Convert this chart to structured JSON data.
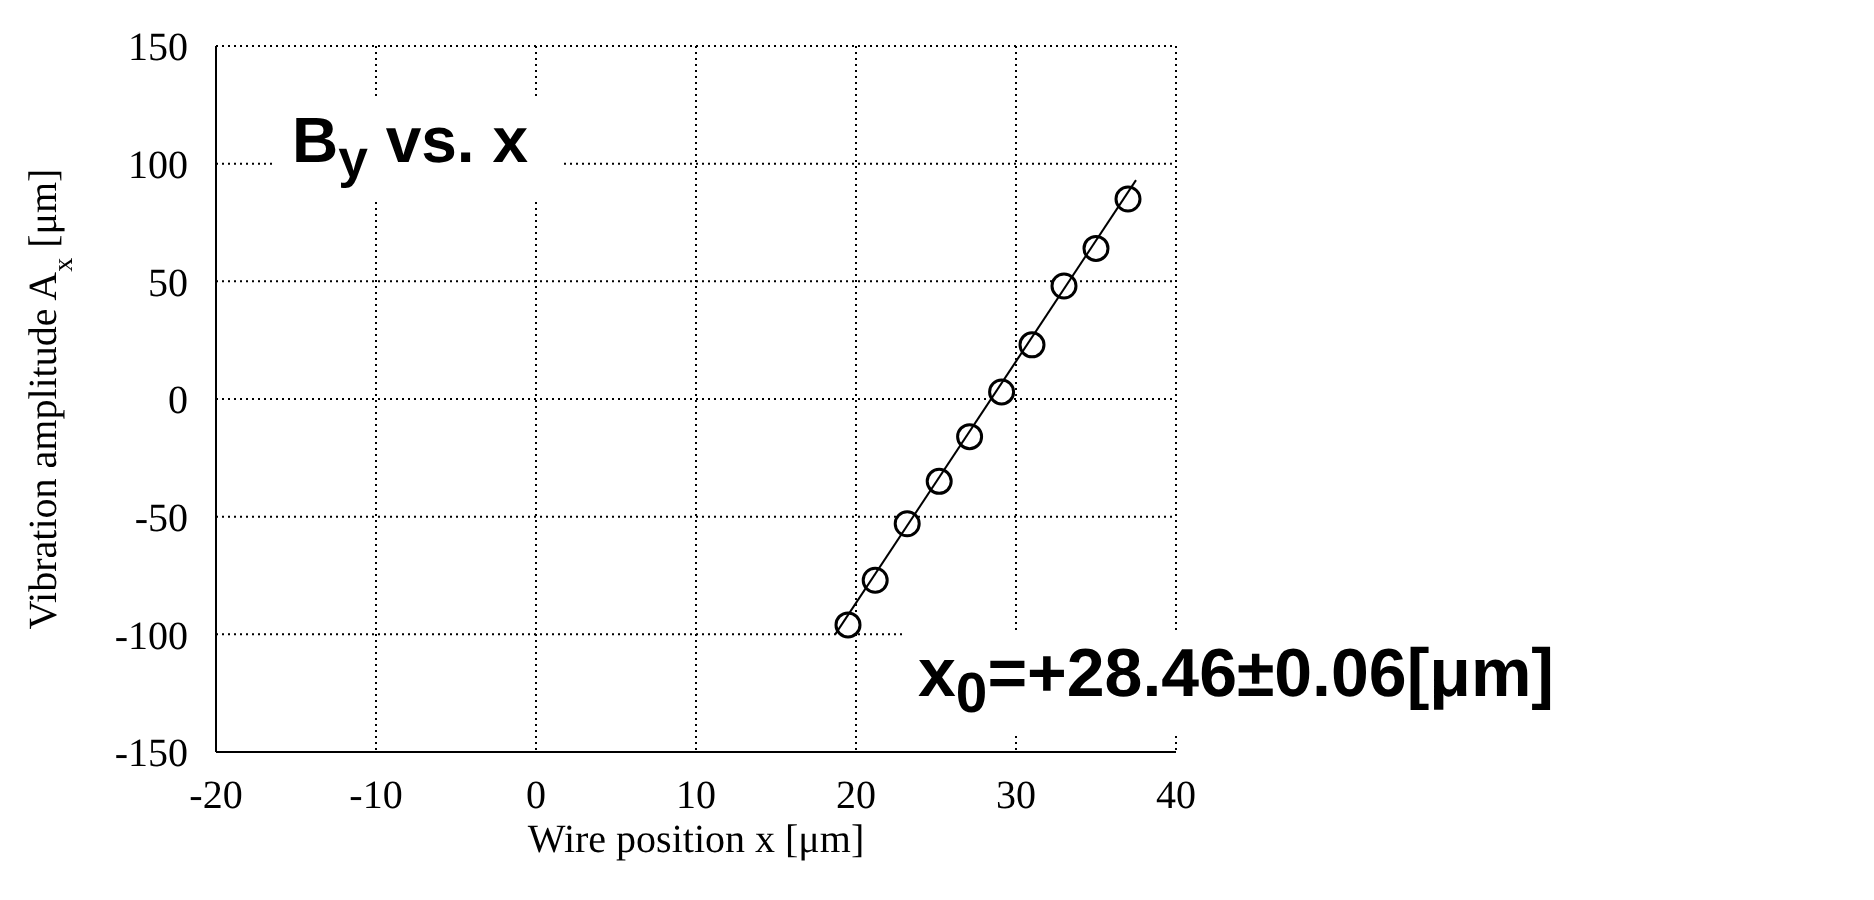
{
  "chart_data": {
    "type": "scatter",
    "xlabel": "Wire position x  [μm]",
    "ylabel": "Vibration amplitude A$_{x}$  [μm]",
    "annotations": [
      "B$_{y}$ vs. x",
      "x$_{0}$=+28.46±0.06[μm]"
    ],
    "x": [
      19.5,
      21.2,
      23.2,
      25.2,
      27.1,
      29.1,
      31,
      33,
      35,
      37
    ],
    "series": [
      {
        "color": "#000000",
        "marker": "circle",
        "values": [
          -96,
          -77,
          -53,
          -35,
          -16,
          3,
          23,
          48,
          64,
          85
        ]
      },
      {
        "type": "line",
        "color": "#000000",
        "x": [
          18.7,
          37.5
        ],
        "values": [
          -100,
          93
        ]
      }
    ],
    "xlim": [
      -20,
      40
    ],
    "xticks": [
      -20,
      -10,
      0,
      10,
      20,
      30,
      40
    ],
    "ylim": [
      -150,
      150
    ],
    "yticks": [
      -150,
      -100,
      -50,
      0,
      50,
      100,
      150
    ],
    "grid": true,
    "line_style": "solid"
  }
}
